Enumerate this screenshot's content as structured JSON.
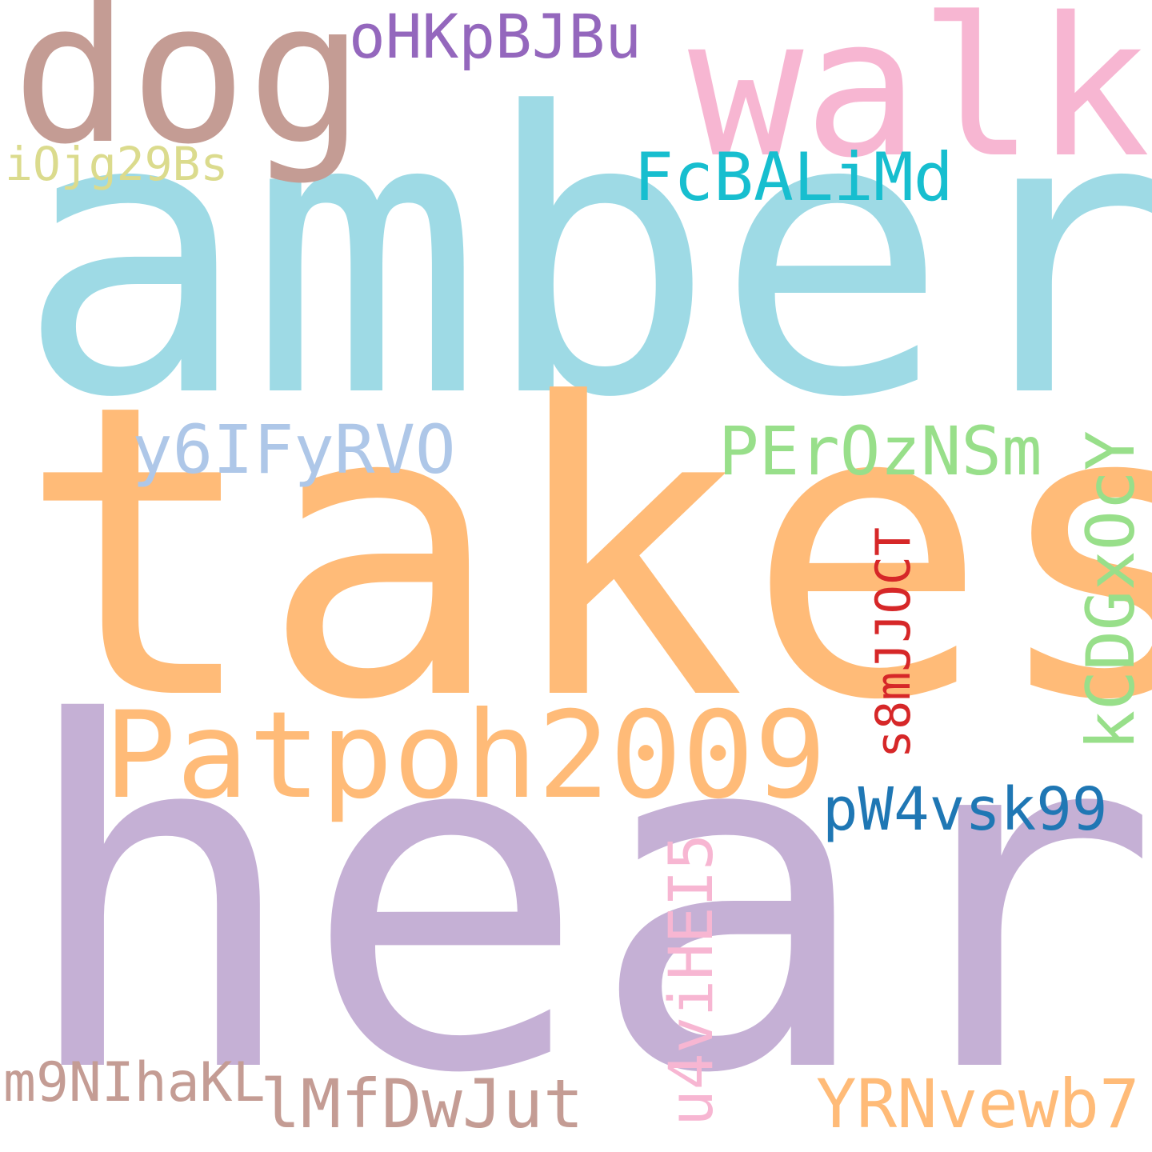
{
  "words": {
    "amber": {
      "text": "amber",
      "color": "#9edae5"
    },
    "takes": {
      "text": "takes",
      "color": "#ffbb78"
    },
    "heard": {
      "text": "heard",
      "color": "#c5b0d5"
    },
    "dog": {
      "text": "dog",
      "color": "#c49c94"
    },
    "walk": {
      "text": "walk",
      "color": "#f7b6d2"
    },
    "patpoh2009": {
      "text": "Patpoh2009",
      "color": "#ffbb78"
    },
    "ohkpbjbu": {
      "text": "oHKpBJBu",
      "color": "#9467bd"
    },
    "fcbalimd": {
      "text": "FcBALiMd",
      "color": "#17becf"
    },
    "iojg29bs": {
      "text": "iOjg29Bs",
      "color": "#dbdb8d"
    },
    "y6ifyrvo": {
      "text": "y6IFyRVO",
      "color": "#aec7e8"
    },
    "perozNsm": {
      "text": "PErOzNSm",
      "color": "#98df8a"
    },
    "kcdgxocy": {
      "text": "kCDGxOcY",
      "color": "#98df8a"
    },
    "s8mjjoct": {
      "text": "s8mJJOCT",
      "color": "#d62728"
    },
    "pw4vsk99": {
      "text": "pW4vsk99",
      "color": "#1f77b4"
    },
    "u4vihei5": {
      "text": "u4viHEI5",
      "color": "#f7b6d2"
    },
    "m9nihakl": {
      "text": "m9NIhaKL",
      "color": "#c49c94"
    },
    "lmfdwjut": {
      "text": "lMfDwJut",
      "color": "#c49c94"
    },
    "yrnvewb7": {
      "text": "YRNvewb7",
      "color": "#ffbb78"
    }
  }
}
